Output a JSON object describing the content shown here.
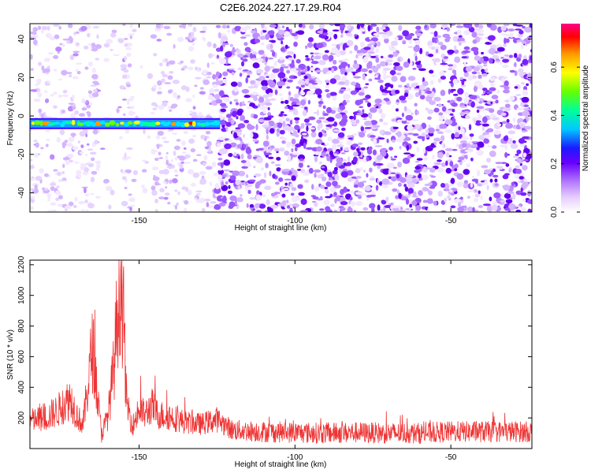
{
  "title": "C2E6.2024.227.17.29.R04",
  "chart_data": [
    {
      "type": "heatmap",
      "xlabel": "Height of straight line (km)",
      "ylabel": "Frequency (Hz)",
      "xlim": [
        -185,
        -24
      ],
      "ylim": [
        -50,
        48
      ],
      "xticks": [
        -150,
        -100,
        -50
      ],
      "yticks": [
        -40,
        -20,
        0,
        20,
        40
      ],
      "colorbar": {
        "label": "Normalized spectral amplitude",
        "range": [
          0,
          0.78
        ],
        "ticks": [
          0.0,
          0.2,
          0.4,
          0.6
        ],
        "colormap": [
          "#ffffff",
          "#e6ccff",
          "#b37aff",
          "#6a00ff",
          "#1a1aff",
          "#00c8ff",
          "#00ff99",
          "#66ff00",
          "#ffff00",
          "#ff9900",
          "#ff0000",
          "#ff0088"
        ]
      },
      "annotations": [
        {
          "feature": "narrowband line",
          "x_range": [
            -185,
            -124
          ],
          "frequency": -4,
          "amplitude_max": 0.75
        }
      ],
      "noise": {
        "weak_region_x": [
          -185,
          -125
        ],
        "strong_region_x": [
          -125,
          -24
        ]
      },
      "grid": false
    },
    {
      "type": "line",
      "xlabel": "Height of straight line (km)",
      "ylabel": "SNR (10 * v/v)",
      "xlim": [
        -185,
        -24
      ],
      "ylim": [
        0,
        1230
      ],
      "xticks": [
        -150,
        -100,
        -50
      ],
      "yticks": [
        200,
        400,
        600,
        800,
        1000,
        1200
      ],
      "series": [
        {
          "color": "#ee3333",
          "profile": {
            "x": [
              -185,
              -180,
              -176,
              -172,
              -170,
              -168,
              -166,
              -165,
              -164,
              -163,
              -162,
              -160,
              -158,
              -157,
              -156,
              -155,
              -154,
              -152,
              -150,
              -148,
              -146,
              -144,
              -140,
              -135,
              -130,
              -125,
              -120,
              -110,
              -100,
              -90,
              -80,
              -70,
              -60,
              -50,
              -40,
              -30,
              -24
            ],
            "y": [
              180,
              200,
              250,
              330,
              220,
              150,
              480,
              660,
              500,
              270,
              100,
              210,
              540,
              900,
              1080,
              860,
              300,
              150,
              250,
              220,
              280,
              220,
              210,
              170,
              160,
              190,
              120,
              110,
              105,
              100,
              105,
              100,
              100,
              110,
              110,
              110,
              110
            ]
          }
        }
      ],
      "grid": false
    }
  ]
}
